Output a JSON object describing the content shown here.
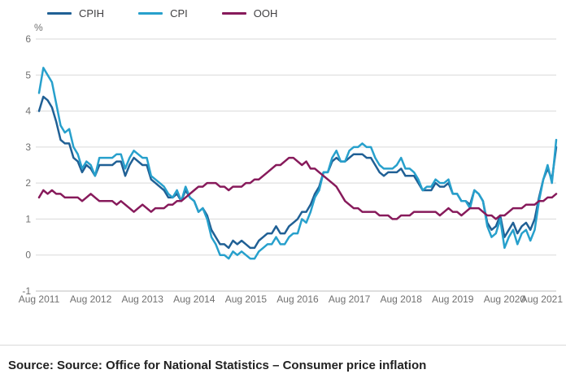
{
  "legend": {
    "items": [
      {
        "label": "CPIH",
        "color": "#206095"
      },
      {
        "label": "CPI",
        "color": "#27a0cc"
      },
      {
        "label": "OOH",
        "color": "#871a5b"
      }
    ]
  },
  "y_axis_unit": "%",
  "source": "Source: Source: Office for National Statistics – Consumer price inflation",
  "chart_data": {
    "type": "line",
    "ylabel": "%",
    "ylim": [
      -1,
      6
    ],
    "y_ticks": [
      -1,
      0,
      1,
      2,
      3,
      4,
      5,
      6
    ],
    "grid": "horizontal",
    "legend_position": "top",
    "x_start": "Aug 2011",
    "x_end": "Aug 2021",
    "x_frequency": "monthly",
    "x_tick_labels": [
      "Aug 2011",
      "Aug 2012",
      "Aug 2013",
      "Aug 2014",
      "Aug 2015",
      "Aug 2016",
      "Aug 2017",
      "Aug 2018",
      "Aug 2019",
      "Aug 2020",
      "Aug 2021"
    ],
    "series": [
      {
        "name": "CPIH",
        "color": "#206095",
        "values": [
          4.0,
          4.4,
          4.3,
          4.1,
          3.7,
          3.2,
          3.1,
          3.1,
          2.7,
          2.6,
          2.3,
          2.5,
          2.4,
          2.2,
          2.5,
          2.5,
          2.5,
          2.5,
          2.6,
          2.6,
          2.2,
          2.5,
          2.7,
          2.6,
          2.5,
          2.5,
          2.1,
          2.0,
          1.9,
          1.8,
          1.6,
          1.6,
          1.7,
          1.5,
          1.8,
          1.6,
          1.5,
          1.2,
          1.3,
          1.1,
          0.7,
          0.5,
          0.3,
          0.3,
          0.2,
          0.4,
          0.3,
          0.4,
          0.3,
          0.2,
          0.2,
          0.4,
          0.5,
          0.6,
          0.6,
          0.8,
          0.6,
          0.6,
          0.8,
          0.9,
          1.0,
          1.2,
          1.2,
          1.4,
          1.7,
          1.9,
          2.3,
          2.3,
          2.6,
          2.7,
          2.6,
          2.6,
          2.7,
          2.8,
          2.8,
          2.8,
          2.7,
          2.7,
          2.5,
          2.3,
          2.2,
          2.3,
          2.3,
          2.3,
          2.4,
          2.2,
          2.2,
          2.2,
          2.0,
          1.8,
          1.8,
          1.8,
          2.0,
          1.9,
          1.9,
          2.0,
          1.7,
          1.7,
          1.5,
          1.5,
          1.4,
          1.8,
          1.7,
          1.5,
          0.9,
          0.7,
          0.8,
          1.1,
          0.5,
          0.7,
          0.9,
          0.6,
          0.8,
          0.9,
          0.7,
          1.0,
          1.6,
          2.1,
          2.4,
          2.1,
          3.0
        ]
      },
      {
        "name": "CPI",
        "color": "#27a0cc",
        "values": [
          4.5,
          5.2,
          5.0,
          4.8,
          4.2,
          3.6,
          3.4,
          3.5,
          3.0,
          2.8,
          2.4,
          2.6,
          2.5,
          2.2,
          2.7,
          2.7,
          2.7,
          2.7,
          2.8,
          2.8,
          2.4,
          2.7,
          2.9,
          2.8,
          2.7,
          2.7,
          2.2,
          2.1,
          2.0,
          1.9,
          1.7,
          1.6,
          1.8,
          1.5,
          1.9,
          1.6,
          1.5,
          1.2,
          1.3,
          1.0,
          0.5,
          0.3,
          0.0,
          0.0,
          -0.1,
          0.1,
          0.0,
          0.1,
          0.0,
          -0.1,
          -0.1,
          0.1,
          0.2,
          0.3,
          0.3,
          0.5,
          0.3,
          0.3,
          0.5,
          0.6,
          0.6,
          1.0,
          0.9,
          1.2,
          1.6,
          1.8,
          2.3,
          2.3,
          2.7,
          2.9,
          2.6,
          2.6,
          2.9,
          3.0,
          3.0,
          3.1,
          3.0,
          3.0,
          2.7,
          2.5,
          2.4,
          2.4,
          2.4,
          2.5,
          2.7,
          2.4,
          2.4,
          2.3,
          2.1,
          1.8,
          1.9,
          1.9,
          2.1,
          2.0,
          2.0,
          2.1,
          1.7,
          1.7,
          1.5,
          1.5,
          1.3,
          1.8,
          1.7,
          1.5,
          0.8,
          0.5,
          0.6,
          1.0,
          0.2,
          0.5,
          0.7,
          0.3,
          0.6,
          0.7,
          0.4,
          0.7,
          1.5,
          2.1,
          2.5,
          2.0,
          3.2
        ]
      },
      {
        "name": "OOH",
        "color": "#871a5b",
        "values": [
          1.6,
          1.8,
          1.7,
          1.8,
          1.7,
          1.7,
          1.6,
          1.6,
          1.6,
          1.6,
          1.5,
          1.6,
          1.7,
          1.6,
          1.5,
          1.5,
          1.5,
          1.5,
          1.4,
          1.5,
          1.4,
          1.3,
          1.2,
          1.3,
          1.4,
          1.3,
          1.2,
          1.3,
          1.3,
          1.3,
          1.4,
          1.4,
          1.5,
          1.5,
          1.6,
          1.7,
          1.8,
          1.9,
          1.9,
          2.0,
          2.0,
          2.0,
          1.9,
          1.9,
          1.8,
          1.9,
          1.9,
          1.9,
          2.0,
          2.0,
          2.1,
          2.1,
          2.2,
          2.3,
          2.4,
          2.5,
          2.5,
          2.6,
          2.7,
          2.7,
          2.6,
          2.5,
          2.6,
          2.4,
          2.4,
          2.3,
          2.2,
          2.1,
          2.0,
          1.9,
          1.7,
          1.5,
          1.4,
          1.3,
          1.3,
          1.2,
          1.2,
          1.2,
          1.2,
          1.1,
          1.1,
          1.1,
          1.0,
          1.0,
          1.1,
          1.1,
          1.1,
          1.2,
          1.2,
          1.2,
          1.2,
          1.2,
          1.2,
          1.1,
          1.2,
          1.3,
          1.2,
          1.2,
          1.1,
          1.2,
          1.3,
          1.3,
          1.3,
          1.2,
          1.1,
          1.1,
          1.0,
          1.1,
          1.1,
          1.2,
          1.3,
          1.3,
          1.3,
          1.4,
          1.4,
          1.4,
          1.5,
          1.5,
          1.6,
          1.6,
          1.7
        ]
      }
    ]
  }
}
